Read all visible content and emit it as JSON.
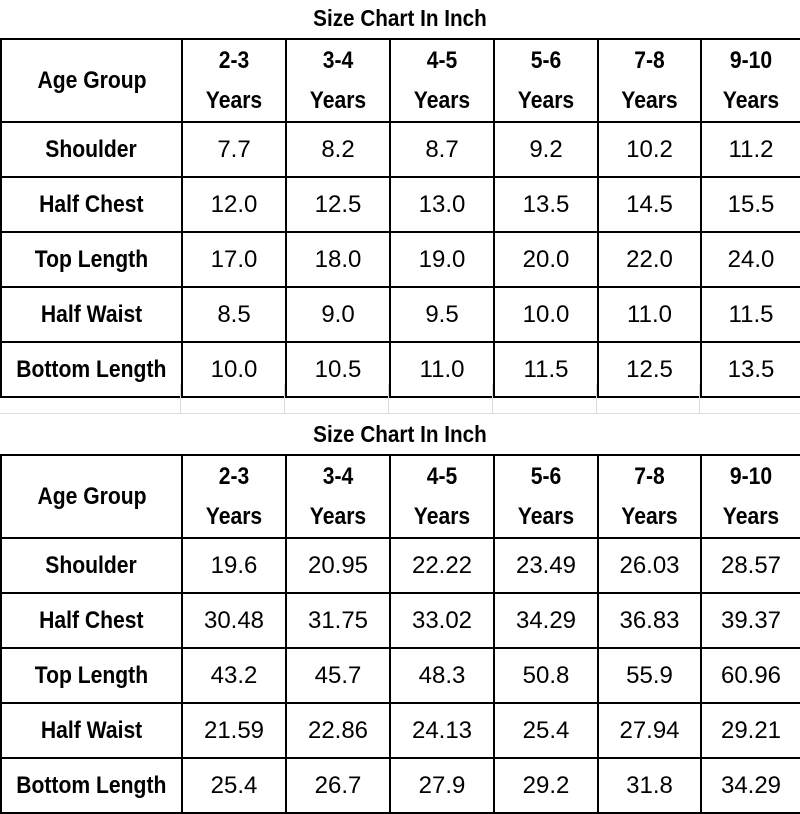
{
  "tables": [
    {
      "title": "Size Chart In Inch",
      "row_header": "Age Group",
      "columns": [
        [
          "2-3",
          "Years"
        ],
        [
          "3-4",
          "Years"
        ],
        [
          "4-5",
          "Years"
        ],
        [
          "5-6",
          "Years"
        ],
        [
          "7-8",
          "Years"
        ],
        [
          "9-10",
          "Years"
        ]
      ],
      "rows": [
        {
          "label": "Shoulder",
          "values": [
            "7.7",
            "8.2",
            "8.7",
            "9.2",
            "10.2",
            "11.2"
          ]
        },
        {
          "label": "Half Chest",
          "values": [
            "12.0",
            "12.5",
            "13.0",
            "13.5",
            "14.5",
            "15.5"
          ]
        },
        {
          "label": "Top Length",
          "values": [
            "17.0",
            "18.0",
            "19.0",
            "20.0",
            "22.0",
            "24.0"
          ]
        },
        {
          "label": "Half Waist",
          "values": [
            "8.5",
            "9.0",
            "9.5",
            "10.0",
            "11.0",
            "11.5"
          ]
        },
        {
          "label": "Bottom Length",
          "values": [
            "10.0",
            "10.5",
            "11.0",
            "11.5",
            "12.5",
            "13.5"
          ]
        }
      ]
    },
    {
      "title": "Size Chart In Inch",
      "row_header": "Age Group",
      "columns": [
        [
          "2-3",
          "Years"
        ],
        [
          "3-4",
          "Years"
        ],
        [
          "4-5",
          "Years"
        ],
        [
          "5-6",
          "Years"
        ],
        [
          "7-8",
          "Years"
        ],
        [
          "9-10",
          "Years"
        ]
      ],
      "rows": [
        {
          "label": "Shoulder",
          "values": [
            "19.6",
            "20.95",
            "22.22",
            "23.49",
            "26.03",
            "28.57"
          ]
        },
        {
          "label": "Half Chest",
          "values": [
            "30.48",
            "31.75",
            "33.02",
            "34.29",
            "36.83",
            "39.37"
          ]
        },
        {
          "label": "Top Length",
          "values": [
            "43.2",
            "45.7",
            "48.3",
            "50.8",
            "55.9",
            "60.96"
          ]
        },
        {
          "label": "Half Waist",
          "values": [
            "21.59",
            "22.86",
            "24.13",
            "25.4",
            "27.94",
            "29.21"
          ]
        },
        {
          "label": "Bottom Length",
          "values": [
            "25.4",
            "26.7",
            "27.9",
            "29.2",
            "31.8",
            "34.29"
          ]
        }
      ]
    }
  ]
}
